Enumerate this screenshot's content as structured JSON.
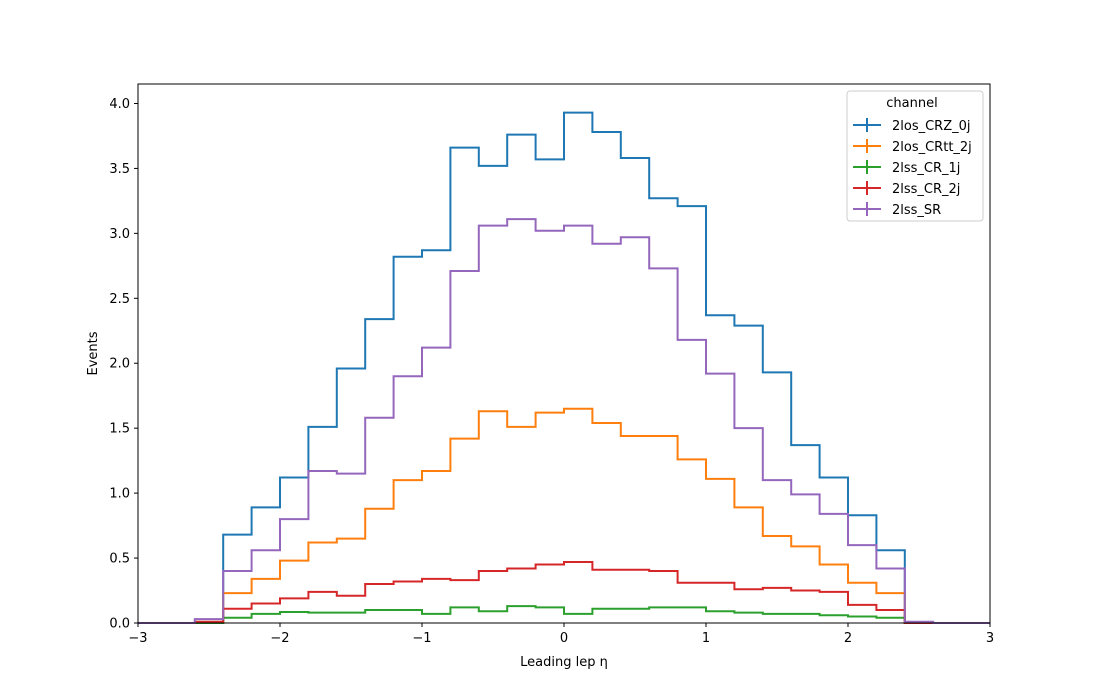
{
  "chart_data": {
    "type": "line",
    "drawstyle": "steps",
    "xlabel": "Leading lep η",
    "ylabel": "Events",
    "xlim": [
      -3,
      3
    ],
    "ylim": [
      0,
      4.15
    ],
    "xticks": [
      -3,
      -2,
      -1,
      0,
      1,
      2,
      3
    ],
    "xtick_labels": [
      "−3",
      "−2",
      "−1",
      "0",
      "1",
      "2",
      "3"
    ],
    "yticks": [
      0,
      0.5,
      1.0,
      1.5,
      2.0,
      2.5,
      3.0,
      3.5,
      4.0
    ],
    "ytick_labels": [
      "0.0",
      "0.5",
      "1.0",
      "1.5",
      "2.0",
      "2.5",
      "3.0",
      "3.5",
      "4.0"
    ],
    "grid": false,
    "legend": {
      "title": "channel",
      "placement": "top-right"
    },
    "bin_edges": [
      -3.0,
      -2.8,
      -2.6,
      -2.4,
      -2.2,
      -2.0,
      -1.8,
      -1.6,
      -1.4,
      -1.2,
      -1.0,
      -0.8,
      -0.6,
      -0.4,
      -0.2,
      0.0,
      0.2,
      0.4,
      0.6,
      0.8,
      1.0,
      1.2,
      1.4,
      1.6,
      1.8,
      2.0,
      2.2,
      2.4,
      2.6,
      2.8,
      3.0
    ],
    "series": [
      {
        "name": "2los_CRZ_0j",
        "color": "#1f77b4",
        "values": [
          0,
          0,
          0,
          0.68,
          0.89,
          1.12,
          1.51,
          1.96,
          2.34,
          2.82,
          2.87,
          3.66,
          3.52,
          3.76,
          3.57,
          3.93,
          3.78,
          3.58,
          3.27,
          3.21,
          2.37,
          2.29,
          1.93,
          1.37,
          1.12,
          0.83,
          0.56,
          0,
          0,
          0
        ]
      },
      {
        "name": "2los_CRtt_2j",
        "color": "#ff7f0e",
        "values": [
          0,
          0,
          0,
          0.23,
          0.34,
          0.48,
          0.62,
          0.65,
          0.88,
          1.1,
          1.17,
          1.42,
          1.63,
          1.51,
          1.62,
          1.65,
          1.54,
          1.44,
          1.44,
          1.26,
          1.11,
          0.89,
          0.67,
          0.59,
          0.45,
          0.31,
          0.23,
          0,
          0,
          0
        ]
      },
      {
        "name": "2lss_CR_1j",
        "color": "#2ca02c",
        "values": [
          0,
          0,
          0,
          0.04,
          0.07,
          0.085,
          0.08,
          0.08,
          0.1,
          0.1,
          0.07,
          0.12,
          0.09,
          0.13,
          0.12,
          0.07,
          0.11,
          0.11,
          0.12,
          0.12,
          0.09,
          0.08,
          0.07,
          0.07,
          0.06,
          0.05,
          0.04,
          0,
          0,
          0
        ]
      },
      {
        "name": "2lss_CR_2j",
        "color": "#d62728",
        "values": [
          0,
          0,
          0.01,
          0.11,
          0.15,
          0.19,
          0.24,
          0.21,
          0.3,
          0.32,
          0.34,
          0.33,
          0.4,
          0.42,
          0.45,
          0.47,
          0.41,
          0.41,
          0.4,
          0.31,
          0.31,
          0.26,
          0.27,
          0.25,
          0.24,
          0.14,
          0.1,
          0,
          0,
          0
        ]
      },
      {
        "name": "2lss_SR",
        "color": "#9467bd",
        "values": [
          0,
          0,
          0.03,
          0.4,
          0.56,
          0.8,
          1.17,
          1.15,
          1.58,
          1.9,
          2.12,
          2.71,
          3.06,
          3.11,
          3.02,
          3.06,
          2.92,
          2.97,
          2.73,
          2.18,
          1.92,
          1.5,
          1.1,
          0.99,
          0.84,
          0.6,
          0.42,
          0.01,
          0,
          0
        ]
      }
    ]
  }
}
